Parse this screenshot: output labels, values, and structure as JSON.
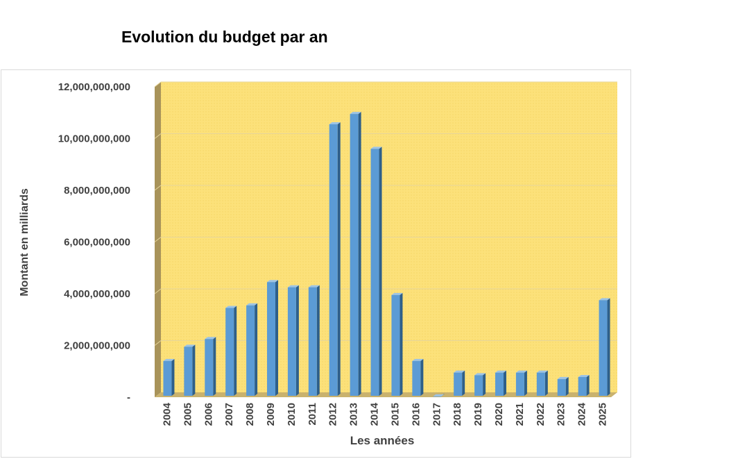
{
  "chart_data": {
    "type": "bar",
    "title": "Evolution du budget par an",
    "xlabel": "Les années",
    "ylabel": "Montant en milliards",
    "categories": [
      "2004",
      "2005",
      "2006",
      "2007",
      "2008",
      "2009",
      "2010",
      "2011",
      "2012",
      "2013",
      "2014",
      "2015",
      "2016",
      "2017",
      "2018",
      "2019",
      "2020",
      "2021",
      "2022",
      "2023",
      "2024",
      "2025"
    ],
    "values": [
      1400000000,
      1950000000,
      2250000000,
      3450000000,
      3550000000,
      4450000000,
      4250000000,
      4250000000,
      10550000000,
      10950000000,
      9600000000,
      3950000000,
      1400000000,
      30000000,
      950000000,
      850000000,
      950000000,
      950000000,
      950000000,
      700000000,
      780000000,
      3750000000
    ],
    "ylim": [
      0,
      12000000000
    ],
    "yticks": [
      0,
      2000000000,
      4000000000,
      6000000000,
      8000000000,
      10000000000,
      12000000000
    ],
    "ytick_labels": [
      "-",
      "2,000,000,000",
      "4,000,000,000",
      "6,000,000,000",
      "8,000,000,000",
      "10,000,000,000",
      "12,000,000,000"
    ],
    "grid": true,
    "colors": {
      "bar_front": "#5b9bd5",
      "bar_side": "#2e5f8a",
      "bar_top": "#9cc3e6",
      "plot_back": "#fce17a",
      "left_wall": "#a8935a",
      "floor": "#c9b26e",
      "gridline": "#e6d59a"
    }
  }
}
